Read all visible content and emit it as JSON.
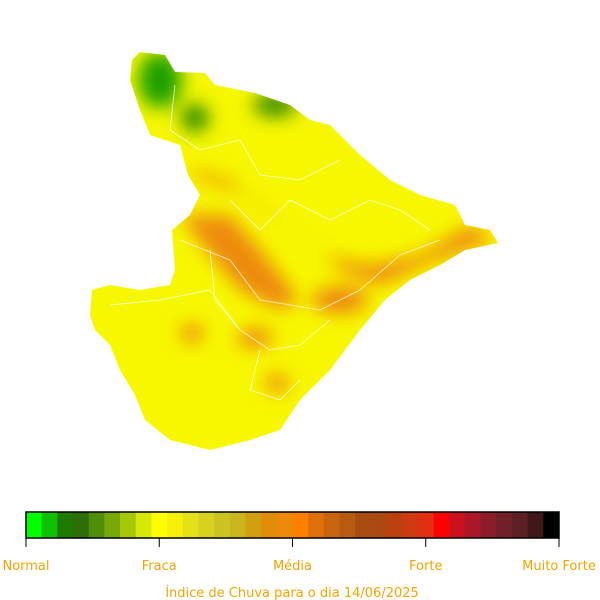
{
  "legend_labels": [
    "Normal",
    "Fraca",
    "Média",
    "Forte",
    "Muito Forte"
  ],
  "caption": "Índice de Chuva para o dia 14/06/2025",
  "colorbar": [
    "#00ff00",
    "#0fc000",
    "#1f7a00",
    "#2d6e0a",
    "#4f8d0a",
    "#77a90a",
    "#a6c80a",
    "#d4e80a",
    "#ffff00",
    "#f5ef0a",
    "#e6e01a",
    "#d8d21e",
    "#cbc420",
    "#c9b51e",
    "#d0a010",
    "#e08c0a",
    "#ee8a0a",
    "#ff8000",
    "#e07008",
    "#c86410",
    "#b85a10",
    "#a84d10",
    "#aa4a12",
    "#bb4010",
    "#d03a10",
    "#e03010",
    "#ff0000",
    "#cc1020",
    "#a81828",
    "#8c1c2a",
    "#702028",
    "#5c2024",
    "#401818",
    "#000000"
  ]
}
